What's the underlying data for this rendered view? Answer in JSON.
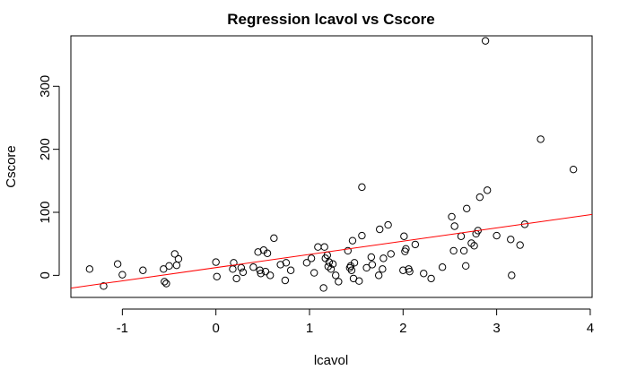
{
  "chart_data": {
    "type": "scatter",
    "title": "Regression lcavol vs Cscore",
    "xlabel": "lcavol",
    "ylabel": "Cscore",
    "xlim": [
      -1.55,
      4.02
    ],
    "ylim": [
      -35,
      380
    ],
    "x_ticks": [
      -1,
      0,
      1,
      2,
      3,
      4
    ],
    "y_ticks": [
      0,
      100,
      200,
      300
    ],
    "x_tick_labels": [
      "-1",
      "0",
      "1",
      "2",
      "3",
      "4"
    ],
    "y_tick_labels": [
      "0",
      "100",
      "200",
      "300"
    ],
    "grid": false,
    "point_color": "#000000",
    "regression_line": {
      "color": "#ff0000",
      "intercept": 12.3,
      "slope": 21.0
    },
    "points": [
      [
        -1.35,
        10
      ],
      [
        -1.2,
        -17
      ],
      [
        -1.05,
        18
      ],
      [
        -1.0,
        1
      ],
      [
        -0.78,
        8
      ],
      [
        -0.56,
        10
      ],
      [
        -0.55,
        -10
      ],
      [
        -0.53,
        -13
      ],
      [
        -0.5,
        15
      ],
      [
        -0.44,
        34
      ],
      [
        -0.42,
        16
      ],
      [
        -0.4,
        26
      ],
      [
        0.0,
        21
      ],
      [
        0.01,
        -2
      ],
      [
        0.18,
        10
      ],
      [
        0.19,
        20
      ],
      [
        0.22,
        -5
      ],
      [
        0.27,
        12
      ],
      [
        0.29,
        5
      ],
      [
        0.4,
        13
      ],
      [
        0.45,
        37
      ],
      [
        0.47,
        8
      ],
      [
        0.48,
        3
      ],
      [
        0.51,
        40
      ],
      [
        0.53,
        6
      ],
      [
        0.55,
        35
      ],
      [
        0.58,
        0
      ],
      [
        0.62,
        59
      ],
      [
        0.69,
        17
      ],
      [
        0.74,
        -8
      ],
      [
        0.75,
        20
      ],
      [
        0.8,
        8
      ],
      [
        0.97,
        20
      ],
      [
        1.02,
        27
      ],
      [
        1.05,
        4
      ],
      [
        1.09,
        45
      ],
      [
        1.15,
        -20
      ],
      [
        1.16,
        45
      ],
      [
        1.17,
        27
      ],
      [
        1.19,
        32
      ],
      [
        1.2,
        14
      ],
      [
        1.21,
        21
      ],
      [
        1.23,
        10
      ],
      [
        1.25,
        18
      ],
      [
        1.28,
        0
      ],
      [
        1.31,
        -10
      ],
      [
        1.41,
        39
      ],
      [
        1.43,
        12
      ],
      [
        1.44,
        15
      ],
      [
        1.45,
        8
      ],
      [
        1.46,
        55
      ],
      [
        1.47,
        -5
      ],
      [
        1.48,
        20
      ],
      [
        1.53,
        -9
      ],
      [
        1.56,
        63
      ],
      [
        1.56,
        140
      ],
      [
        1.61,
        12
      ],
      [
        1.66,
        29
      ],
      [
        1.67,
        17
      ],
      [
        1.74,
        0
      ],
      [
        1.75,
        73
      ],
      [
        1.78,
        10
      ],
      [
        1.79,
        27
      ],
      [
        1.84,
        80
      ],
      [
        1.87,
        34
      ],
      [
        2.0,
        8
      ],
      [
        2.01,
        62
      ],
      [
        2.02,
        38
      ],
      [
        2.03,
        42
      ],
      [
        2.06,
        10
      ],
      [
        2.07,
        6
      ],
      [
        2.13,
        49
      ],
      [
        2.22,
        3
      ],
      [
        2.3,
        -5
      ],
      [
        2.42,
        13
      ],
      [
        2.52,
        93
      ],
      [
        2.54,
        39
      ],
      [
        2.55,
        78
      ],
      [
        2.62,
        62
      ],
      [
        2.65,
        39
      ],
      [
        2.67,
        15
      ],
      [
        2.68,
        106
      ],
      [
        2.73,
        51
      ],
      [
        2.76,
        47
      ],
      [
        2.78,
        66
      ],
      [
        2.8,
        71
      ],
      [
        2.82,
        124
      ],
      [
        2.88,
        372
      ],
      [
        2.9,
        135
      ],
      [
        3.0,
        63
      ],
      [
        3.15,
        57
      ],
      [
        3.16,
        0
      ],
      [
        3.25,
        48
      ],
      [
        3.3,
        81
      ],
      [
        3.47,
        216
      ],
      [
        3.82,
        168
      ]
    ]
  }
}
